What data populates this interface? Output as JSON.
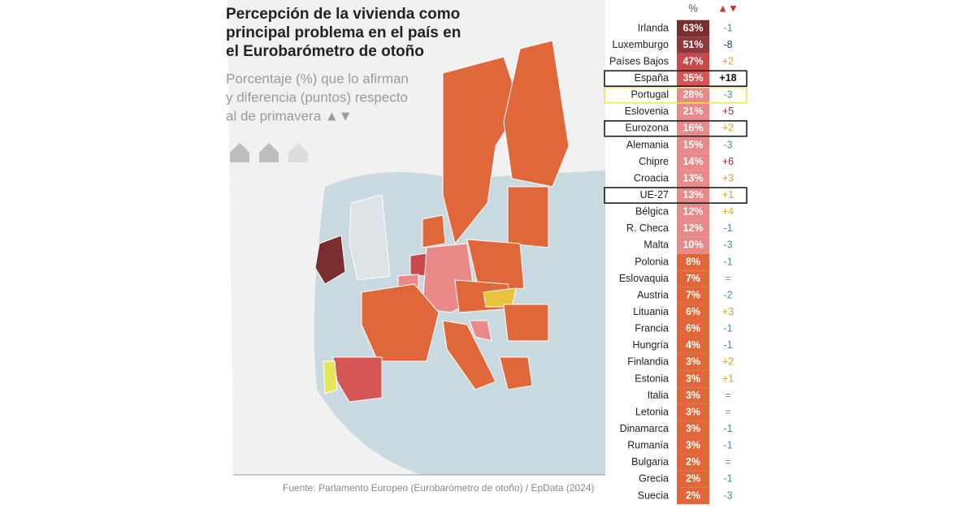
{
  "header": {
    "title": [
      "Percepción de la vivienda como",
      "principal problema en el país en",
      "el Eurobarómetro de otoño"
    ],
    "subtitle": [
      "Porcentaje (%) que lo afirman",
      "y diferencia (puntos) respecto",
      "al de primavera ▲▼"
    ]
  },
  "table": {
    "columns": [
      "%",
      "▲▼"
    ],
    "rows": [
      {
        "country": "Irlanda",
        "pct": "63%",
        "diff": "-1"
      },
      {
        "country": "Luxemburgo",
        "pct": "51%",
        "diff": "-8"
      },
      {
        "country": "Países Bajos",
        "pct": "47%",
        "diff": "+2"
      },
      {
        "country": "España",
        "pct": "35%",
        "diff": "+18",
        "box": "#111111"
      },
      {
        "country": "Portugal",
        "pct": "28%",
        "diff": "-3",
        "box": "#e6e65a"
      },
      {
        "country": "Eslovenia",
        "pct": "21%",
        "diff": "+5"
      },
      {
        "country": "Eurozona",
        "pct": "16%",
        "diff": "+2",
        "box": "#111111"
      },
      {
        "country": "Alemania",
        "pct": "15%",
        "diff": "-3"
      },
      {
        "country": "Chipre",
        "pct": "14%",
        "diff": "+6"
      },
      {
        "country": "Croacia",
        "pct": "13%",
        "diff": "+3"
      },
      {
        "country": "UE-27",
        "pct": "13%",
        "diff": "+1",
        "box": "#111111"
      },
      {
        "country": "Bélgica",
        "pct": "12%",
        "diff": "+4"
      },
      {
        "country": "R. Checa",
        "pct": "12%",
        "diff": "-1"
      },
      {
        "country": "Malta",
        "pct": "10%",
        "diff": "-3"
      },
      {
        "country": "Polonia",
        "pct": "8%",
        "diff": "-1"
      },
      {
        "country": "Eslovaquia",
        "pct": "7%",
        "diff": "="
      },
      {
        "country": "Austria",
        "pct": "7%",
        "diff": "-2"
      },
      {
        "country": "Lituania",
        "pct": "6%",
        "diff": "+3"
      },
      {
        "country": "Francia",
        "pct": "6%",
        "diff": "-1"
      },
      {
        "country": "Hungría",
        "pct": "4%",
        "diff": "-1"
      },
      {
        "country": "Finlandia",
        "pct": "3%",
        "diff": "+2"
      },
      {
        "country": "Estonia",
        "pct": "3%",
        "diff": "+1"
      },
      {
        "country": "Italia",
        "pct": "3%",
        "diff": "="
      },
      {
        "country": "Letonia",
        "pct": "3%",
        "diff": "="
      },
      {
        "country": "Dinamarca",
        "pct": "3%",
        "diff": "-1"
      },
      {
        "country": "Rumanía",
        "pct": "3%",
        "diff": "-1"
      },
      {
        "country": "Bulgaria",
        "pct": "2%",
        "diff": "="
      },
      {
        "country": "Grecia",
        "pct": "2%",
        "diff": "-1"
      },
      {
        "country": "Suecia",
        "pct": "2%",
        "diff": "-3"
      }
    ]
  },
  "source": "Fuente: Parlamento Europeo (Eurobarómetro de otoño)  / EpData (2024)"
}
